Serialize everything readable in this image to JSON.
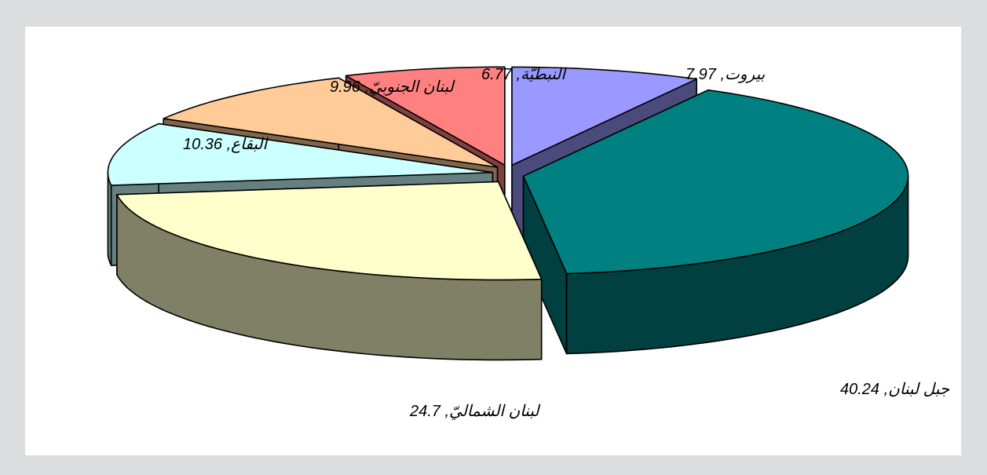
{
  "chart_data": {
    "type": "pie",
    "style": "3d-exploded",
    "labels": [
      "بيروت, 7.97",
      "جبل لبنان, 40.24",
      "لبنان الشماليّ, 24.7",
      "البقاع, 10.36",
      "لبنان الجنوبيّ, 9.96",
      "النبطيّة, 6.77"
    ],
    "slices": [
      {
        "name": "بيروت",
        "value": 7.97,
        "top": "#9999ff",
        "side": "#4a4a7d"
      },
      {
        "name": "جبل لبنان",
        "value": 40.24,
        "top": "#008080",
        "side": "#004040"
      },
      {
        "name": "لبنان الشماليّ",
        "value": 24.7,
        "top": "#ffffcc",
        "side": "#808066"
      },
      {
        "name": "البقاع",
        "value": 10.36,
        "top": "#ccffff",
        "side": "#668080"
      },
      {
        "name": "لبنان الجنوبيّ",
        "value": 9.96,
        "top": "#ffcc99",
        "side": "#80664d"
      },
      {
        "name": "النبطيّة",
        "value": 6.77,
        "top": "#ff8080",
        "side": "#804040"
      }
    ]
  }
}
